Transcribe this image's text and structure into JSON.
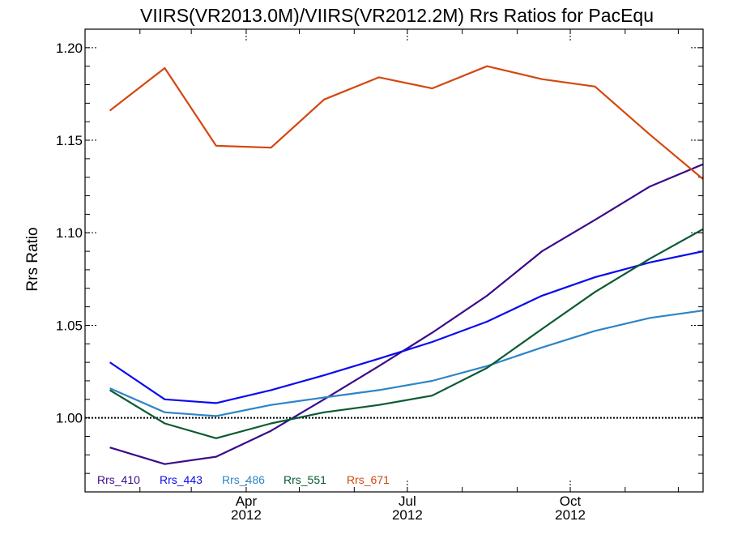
{
  "chart_data": {
    "type": "line",
    "title": "VIIRS(VR2013.0M)/VIIRS(VR2012.2M)  Rrs Ratios for PacEqu",
    "xlabel": "",
    "ylabel": "Rrs Ratio",
    "ylim": [
      0.96,
      1.21
    ],
    "yticks": [
      "1.00",
      "1.05",
      "1.10",
      "1.15",
      "1.20"
    ],
    "xticks": [
      {
        "month": "Apr",
        "year": "2012"
      },
      {
        "month": "Jul",
        "year": "2012"
      },
      {
        "month": "Oct",
        "year": "2012"
      }
    ],
    "reference_line": 1.0,
    "x": [
      "2012-01-15",
      "2012-02-15",
      "2012-03-15",
      "2012-04-15",
      "2012-05-15",
      "2012-06-15",
      "2012-07-15",
      "2012-08-15",
      "2012-09-15",
      "2012-10-15",
      "2012-11-15",
      "2012-12-15"
    ],
    "series": [
      {
        "name": "Rrs_410",
        "color": "#3b0a8a",
        "values": [
          0.984,
          0.975,
          0.979,
          0.993,
          1.01,
          1.028,
          1.046,
          1.066,
          1.09,
          1.107,
          1.125,
          1.137
        ]
      },
      {
        "name": "Rrs_443",
        "color": "#0a0af0",
        "values": [
          1.03,
          1.01,
          1.008,
          1.015,
          1.023,
          1.032,
          1.041,
          1.052,
          1.066,
          1.076,
          1.084,
          1.09
        ]
      },
      {
        "name": "Rrs_486",
        "color": "#2e84c6",
        "values": [
          1.016,
          1.003,
          1.001,
          1.007,
          1.011,
          1.015,
          1.02,
          1.028,
          1.038,
          1.047,
          1.054,
          1.058
        ]
      },
      {
        "name": "Rrs_551",
        "color": "#0b5a32",
        "values": [
          1.015,
          0.997,
          0.989,
          0.997,
          1.003,
          1.007,
          1.012,
          1.027,
          1.048,
          1.068,
          1.086,
          1.102
        ]
      },
      {
        "name": "Rrs_671",
        "color": "#d4470e",
        "values": [
          1.166,
          1.189,
          1.147,
          1.146,
          1.172,
          1.184,
          1.178,
          1.19,
          1.183,
          1.179,
          1.153,
          1.129
        ]
      }
    ]
  }
}
